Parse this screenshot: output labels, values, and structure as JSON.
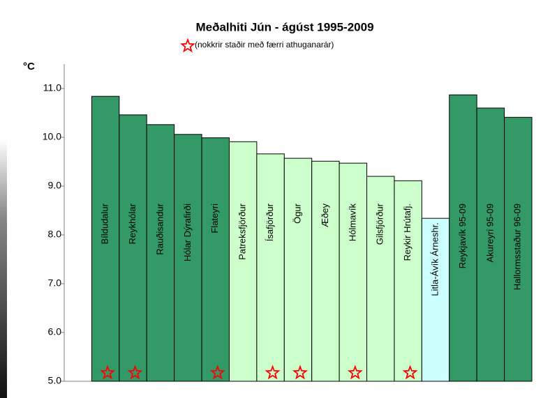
{
  "chart_data": {
    "type": "bar",
    "title": "Meðalhiti Jún - ágúst 1995-2009",
    "subtitle": "(nokkrir staðir með færri athuganarár)",
    "y_label": "°C",
    "categories": [
      null,
      "Bíldudalur",
      "Reykhólar",
      "Rauðisandur",
      "Hólar Dýrafirði",
      "Flateyri",
      "Patreksfjörður",
      "Ísafjörður",
      "Ögur",
      "Æðey",
      "Hólmavík",
      "Gilsfjörður",
      "Reykir Hrútafj.",
      "Litla-Ávík Árneshr.",
      "Reykjavík 95-09",
      "Akureyri 95-09",
      "Hallormsstaður 96-09"
    ],
    "values": [
      null,
      10.84,
      10.46,
      10.26,
      10.06,
      9.99,
      9.91,
      9.66,
      9.57,
      9.51,
      9.47,
      9.2,
      9.11,
      8.34,
      10.87,
      10.6,
      10.41
    ],
    "colors": [
      null,
      "#339966",
      "#339966",
      "#339966",
      "#339966",
      "#339966",
      "#ccffcc",
      "#ccffcc",
      "#ccffcc",
      "#ccffcc",
      "#ccffcc",
      "#ccffcc",
      "#ccffcc",
      "#ccffff",
      "#339966",
      "#339966",
      "#339966"
    ],
    "stars": [
      false,
      true,
      true,
      false,
      false,
      true,
      false,
      true,
      true,
      false,
      true,
      false,
      true,
      false,
      false,
      false,
      false
    ],
    "star_color": "#ff0000",
    "ylim": [
      5,
      11.5
    ],
    "yticks": [
      {
        "value": 5,
        "label": "5.0"
      },
      {
        "value": 6,
        "label": "6.0"
      },
      {
        "value": 7,
        "label": "7.0"
      },
      {
        "value": 8,
        "label": "8.0"
      },
      {
        "value": 9,
        "label": "9.0"
      },
      {
        "value": 10,
        "label": "10.0"
      },
      {
        "value": 11,
        "label": "11.0"
      }
    ]
  }
}
